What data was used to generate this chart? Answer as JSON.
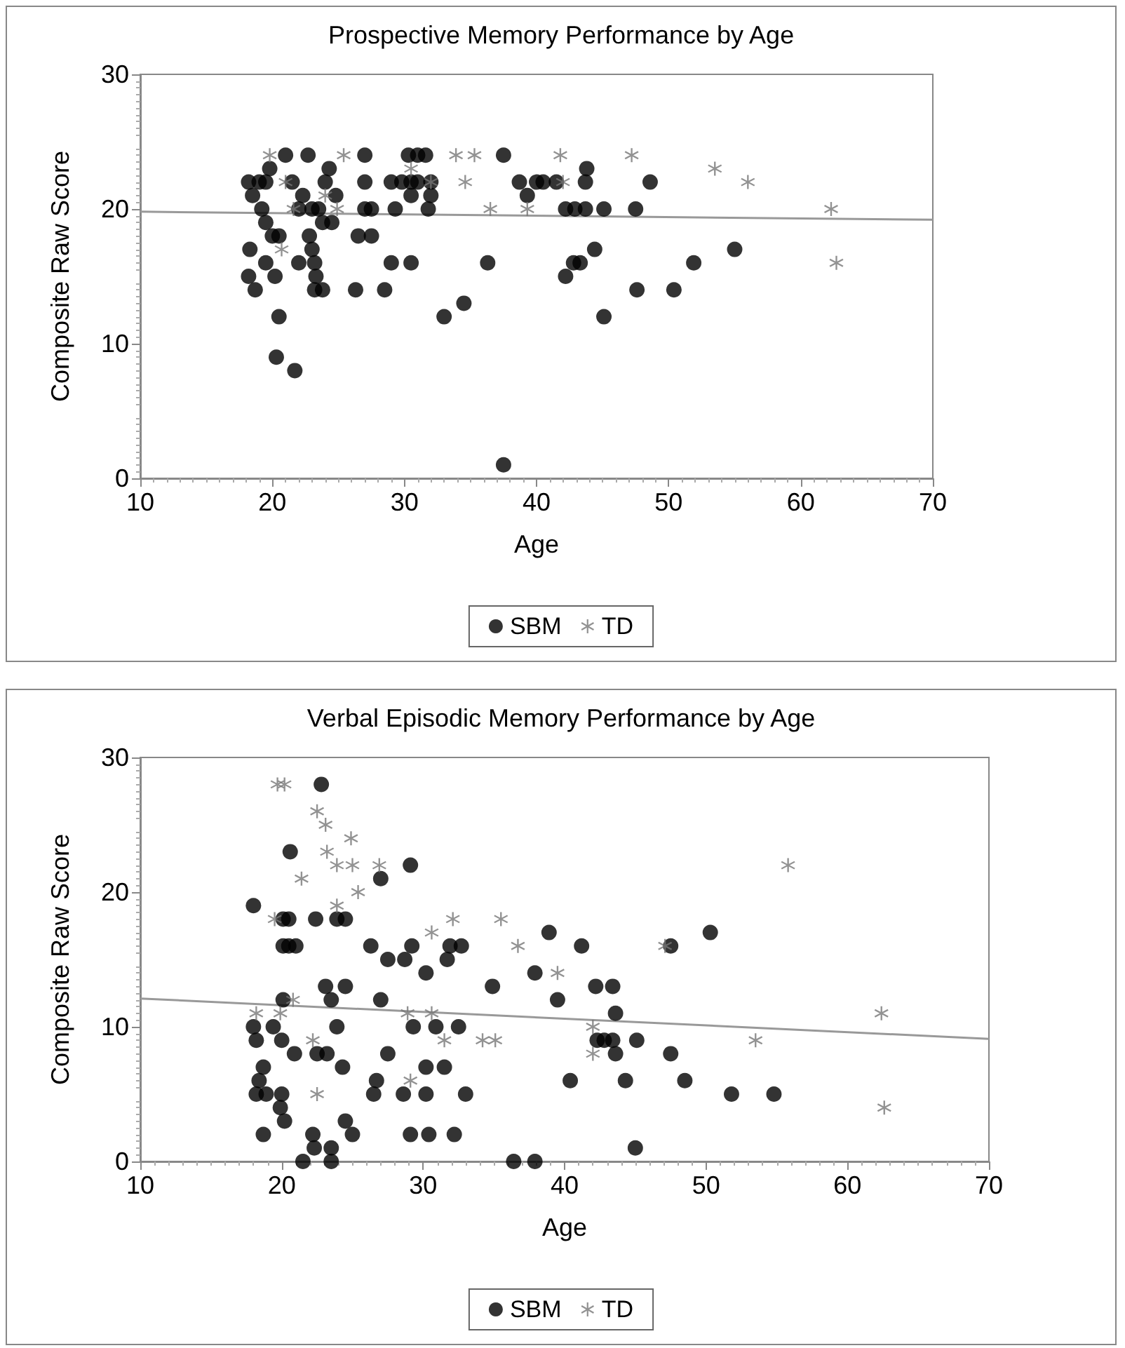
{
  "chart_data": [
    {
      "type": "scatter",
      "title": "Prospective Memory Performance by Age",
      "xlabel": "Age",
      "ylabel": "Composite Raw Score",
      "xlim": [
        10,
        70
      ],
      "xticks": [
        10,
        20,
        30,
        40,
        50,
        60,
        70
      ],
      "ylim": [
        0,
        30
      ],
      "yticks": [
        0,
        10,
        20,
        30
      ],
      "grid": false,
      "legend": "bottom",
      "series": [
        {
          "name": "SBM",
          "color": "#000000",
          "marker": "circle",
          "x": [
            18.2,
            18.5,
            19,
            18.3,
            18.2,
            18.7,
            19.2,
            19.5,
            19.8,
            19.5,
            20,
            19.5,
            20.2,
            20.5,
            21,
            20.5,
            20.3,
            21.7,
            22,
            21.5,
            22.3,
            22,
            22.7,
            22.8,
            23,
            23,
            23.2,
            23.3,
            23.2,
            23.8,
            23.5,
            23.8,
            24,
            24.3,
            24.8,
            24.5,
            26.3,
            26.5,
            27,
            27,
            27,
            27.5,
            27.5,
            28.5,
            29,
            29,
            29.3,
            29.8,
            30.3,
            30.5,
            30.5,
            30.5,
            31,
            31,
            31.6,
            31.8,
            32,
            32,
            33,
            34.5,
            36.3,
            37.5,
            37.5,
            38.7,
            39.3,
            40,
            40.5,
            41.5,
            42.2,
            42.9,
            43.7,
            43.8,
            43.7,
            45.1,
            47.5,
            48.6,
            44.4,
            43.3,
            42.8,
            42.2,
            45.1,
            47.6,
            50.4,
            51.9,
            55
          ],
          "values": [
            22,
            21,
            22,
            17,
            15,
            14,
            20,
            22,
            23,
            19,
            18,
            16,
            15,
            18,
            24,
            12,
            9,
            8,
            20,
            22,
            21,
            16,
            24,
            18,
            17,
            20,
            16,
            15,
            14,
            14,
            20,
            19,
            22,
            23,
            21,
            19,
            14,
            18,
            24,
            22,
            20,
            18,
            20,
            14,
            22,
            16,
            20,
            22,
            24,
            22,
            16,
            21,
            24,
            22,
            24,
            20,
            22,
            21,
            12,
            13,
            16,
            24,
            1,
            22,
            21,
            22,
            22,
            22,
            20,
            20,
            20,
            23,
            22,
            20,
            20,
            22,
            17,
            16,
            16,
            15,
            12,
            14,
            14,
            16,
            17
          ]
        },
        {
          "name": "TD",
          "color": "#777777",
          "marker": "cross",
          "x": [
            19.8,
            21,
            21.6,
            20.7,
            24,
            25.4,
            24.9,
            30.5,
            32,
            33.9,
            35.3,
            34.6,
            36.5,
            39.3,
            41.8,
            42,
            47.2,
            53.5,
            56,
            62.3,
            62.7
          ],
          "values": [
            24,
            22,
            20,
            17,
            21,
            24,
            20,
            23,
            22,
            24,
            24,
            22,
            20,
            20,
            24,
            22,
            24,
            23,
            22,
            20,
            16
          ]
        },
        {
          "type": "line",
          "color": "#999999",
          "marker": "none",
          "line_style": "solid",
          "x": [
            10,
            70
          ],
          "values": [
            19.8,
            19.2
          ]
        }
      ]
    },
    {
      "type": "scatter",
      "title": "Verbal Episodic Memory Performance by Age",
      "xlabel": "Age",
      "ylabel": "Composite Raw Score",
      "xlim": [
        10,
        70
      ],
      "xticks": [
        10,
        20,
        30,
        40,
        50,
        60,
        70
      ],
      "ylim": [
        0,
        30
      ],
      "yticks": [
        0,
        10,
        20,
        30
      ],
      "grid": false,
      "legend": "bottom",
      "series": [
        {
          "name": "SBM",
          "color": "#000000",
          "marker": "circle",
          "x": [
            18,
            20.1,
            20.5,
            20.1,
            20.5,
            21,
            22.4,
            22.8,
            20.6,
            23.9,
            24.5,
            26.3,
            27.5,
            28.7,
            29.2,
            29.1,
            27,
            30.2,
            31.7,
            31.9,
            32.7,
            20.1,
            18,
            19.4,
            18.2,
            20,
            20.9,
            18.7,
            18.4,
            18.2,
            18.9,
            20,
            19.9,
            20.2,
            18.7,
            21.5,
            22.2,
            22.3,
            23.5,
            23.5,
            24.5,
            25,
            23.1,
            23.5,
            24.5,
            23.9,
            22.5,
            23.2,
            24.3,
            26.5,
            26.7,
            27.5,
            27,
            28.6,
            29.1,
            29.3,
            30.2,
            30.2,
            30.4,
            30.9,
            31.5,
            32.2,
            32.5,
            33,
            34.9,
            36.4,
            37.9,
            37.9,
            38.9,
            39.5,
            40.4,
            41.2,
            42.2,
            43.4,
            43.6,
            42.3,
            42.8,
            43.4,
            43.6,
            45.1,
            44.3,
            45,
            47.5,
            47.5,
            48.5,
            50.3,
            51.8,
            54.8
          ],
          "values": [
            19,
            18,
            18,
            16,
            16,
            16,
            18,
            28,
            23,
            18,
            18,
            16,
            15,
            15,
            16,
            22,
            21,
            14,
            15,
            16,
            16,
            12,
            10,
            10,
            9,
            9,
            8,
            7,
            6,
            5,
            5,
            5,
            4,
            3,
            2,
            0,
            2,
            1,
            1,
            0,
            3,
            2,
            13,
            12,
            13,
            10,
            8,
            8,
            7,
            5,
            6,
            8,
            12,
            5,
            2,
            10,
            7,
            5,
            2,
            10,
            7,
            2,
            10,
            5,
            13,
            0,
            0,
            14,
            17,
            12,
            6,
            16,
            13,
            13,
            11,
            9,
            9,
            9,
            8,
            9,
            6,
            1,
            16,
            8,
            6,
            17,
            5,
            5
          ]
        },
        {
          "name": "TD",
          "color": "#777777",
          "marker": "cross",
          "x": [
            19.7,
            20.2,
            22.5,
            23.1,
            23.2,
            23.9,
            25,
            24.9,
            21.4,
            23.9,
            25.4,
            26.9,
            19.5,
            20.8,
            18.2,
            19.9,
            22.2,
            22.5,
            29.1,
            28.9,
            30.6,
            30.6,
            31.5,
            32.1,
            34.2,
            35.1,
            35.5,
            36.7,
            39.5,
            42,
            42,
            47.1,
            53.5,
            55.8,
            62.4,
            62.6
          ],
          "values": [
            28,
            28,
            26,
            25,
            23,
            22,
            22,
            24,
            21,
            19,
            20,
            22,
            18,
            12,
            11,
            11,
            9,
            5,
            6,
            11,
            11,
            17,
            9,
            18,
            9,
            9,
            18,
            16,
            14,
            10,
            8,
            16,
            9,
            22,
            11,
            4
          ]
        },
        {
          "type": "line",
          "color": "#999999",
          "marker": "none",
          "line_style": "solid",
          "x": [
            10,
            70
          ],
          "values": [
            12.1,
            9.1
          ]
        }
      ]
    }
  ]
}
